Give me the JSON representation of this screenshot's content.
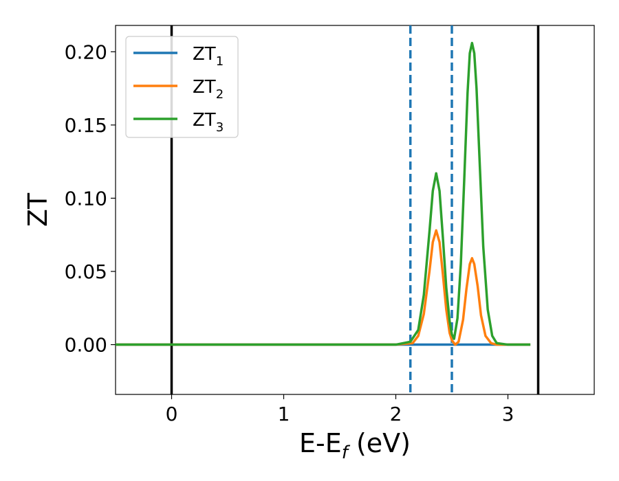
{
  "chart_data": {
    "type": "line",
    "xlabel": "E-E",
    "xlabel_sub": "f",
    "xlabel_suffix": " (eV)",
    "ylabel": "ZT",
    "xlim": [
      -0.5,
      3.77
    ],
    "ylim": [
      -0.034,
      0.218
    ],
    "xticks": [
      0,
      1,
      2,
      3
    ],
    "xtick_labels": [
      "0",
      "1",
      "2",
      "3"
    ],
    "yticks": [
      0.0,
      0.05,
      0.1,
      0.15,
      0.2
    ],
    "ytick_labels": [
      "0.00",
      "0.05",
      "0.10",
      "0.15",
      "0.20"
    ],
    "grid": false,
    "legend_position": "top-left",
    "vlines": [
      {
        "x": 0.0,
        "style": "solid",
        "color": "#000000"
      },
      {
        "x": 3.27,
        "style": "solid",
        "color": "#000000"
      },
      {
        "x": 2.13,
        "style": "dashed",
        "color": "#1f77b4"
      },
      {
        "x": 2.5,
        "style": "dashed",
        "color": "#1f77b4"
      }
    ],
    "series": [
      {
        "name": "ZT",
        "name_sub": "1",
        "color": "#1f77b4",
        "x": [
          -0.5,
          0.0,
          1.0,
          2.0,
          2.13,
          2.3,
          2.5,
          2.7,
          2.9,
          3.2
        ],
        "y": [
          0.0,
          0.0,
          0.0,
          0.0,
          0.0,
          0.0,
          0.0,
          0.0,
          0.0,
          0.0
        ]
      },
      {
        "name": "ZT",
        "name_sub": "2",
        "color": "#ff7f0e",
        "x": [
          -0.5,
          0.0,
          1.0,
          2.0,
          2.15,
          2.2,
          2.25,
          2.3,
          2.33,
          2.36,
          2.39,
          2.42,
          2.45,
          2.48,
          2.5,
          2.53,
          2.56,
          2.6,
          2.63,
          2.66,
          2.68,
          2.7,
          2.73,
          2.76,
          2.8,
          2.85,
          2.9,
          3.0,
          3.2
        ],
        "y": [
          0.0,
          0.0,
          0.0,
          0.0,
          0.001,
          0.006,
          0.021,
          0.05,
          0.07,
          0.078,
          0.07,
          0.048,
          0.024,
          0.008,
          0.003,
          0.0,
          0.002,
          0.017,
          0.038,
          0.055,
          0.059,
          0.055,
          0.04,
          0.02,
          0.006,
          0.001,
          0.0,
          0.0,
          0.0
        ]
      },
      {
        "name": "ZT",
        "name_sub": "3",
        "color": "#2ca02c",
        "x": [
          -0.5,
          0.0,
          1.0,
          2.0,
          2.13,
          2.2,
          2.25,
          2.3,
          2.33,
          2.36,
          2.39,
          2.42,
          2.45,
          2.48,
          2.5,
          2.52,
          2.55,
          2.58,
          2.61,
          2.64,
          2.66,
          2.68,
          2.7,
          2.72,
          2.75,
          2.78,
          2.82,
          2.86,
          2.9,
          3.0,
          3.2
        ],
        "y": [
          0.0,
          0.0,
          0.0,
          0.0,
          0.002,
          0.01,
          0.034,
          0.077,
          0.105,
          0.117,
          0.105,
          0.073,
          0.039,
          0.016,
          0.007,
          0.004,
          0.018,
          0.055,
          0.112,
          0.172,
          0.199,
          0.206,
          0.199,
          0.175,
          0.121,
          0.067,
          0.024,
          0.006,
          0.001,
          0.0,
          0.0
        ]
      }
    ]
  }
}
